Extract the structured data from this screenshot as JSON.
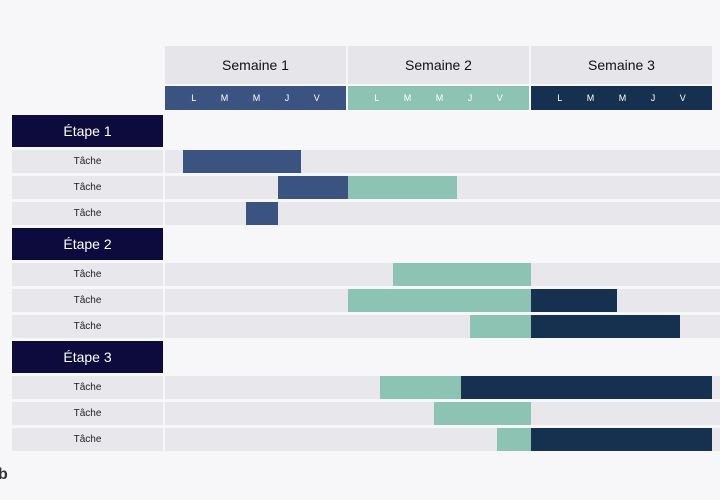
{
  "colors": {
    "week1": "#3a5381",
    "week2": "#8cc3b3",
    "week3": "#16304f"
  },
  "weeks": [
    {
      "label": "Semaine 1",
      "color": "#3a5381",
      "days": [
        "L",
        "M",
        "M",
        "J",
        "V"
      ]
    },
    {
      "label": "Semaine 2",
      "color": "#8cc3b3",
      "days": [
        "L",
        "M",
        "M",
        "J",
        "V"
      ]
    },
    {
      "label": "Semaine 3",
      "color": "#16304f",
      "days": [
        "L",
        "M",
        "M",
        "J",
        "V"
      ]
    }
  ],
  "phases": [
    {
      "label": "Étape 1",
      "tasks": [
        {
          "label": "Tâche",
          "segments": [
            {
              "start": 0.4,
              "end": 3.0,
              "week": 1
            }
          ]
        },
        {
          "label": "Tâche",
          "segments": [
            {
              "start": 2.5,
              "end": 4.0,
              "week": 1
            },
            {
              "start": 4.0,
              "end": 6.4,
              "week": 2
            }
          ]
        },
        {
          "label": "Tâche",
          "segments": [
            {
              "start": 1.8,
              "end": 2.5,
              "week": 1
            }
          ]
        }
      ]
    },
    {
      "label": "Étape 2",
      "tasks": [
        {
          "label": "Tâche",
          "segments": [
            {
              "start": 5.0,
              "end": 8.0,
              "week": 2
            }
          ]
        },
        {
          "label": "Tâche",
          "segments": [
            {
              "start": 4.0,
              "end": 8.0,
              "week": 2
            },
            {
              "start": 8.0,
              "end": 9.9,
              "week": 3
            }
          ]
        },
        {
          "label": "Tâche",
          "segments": [
            {
              "start": 6.7,
              "end": 8.0,
              "week": 2
            },
            {
              "start": 8.0,
              "end": 11.3,
              "week": 3
            }
          ]
        }
      ]
    },
    {
      "label": "Étape 3",
      "tasks": [
        {
          "label": "Tâche",
          "segments": [
            {
              "start": 4.7,
              "end": 6.5,
              "week": 2
            },
            {
              "start": 6.5,
              "end": 12.0,
              "week": 3
            }
          ]
        },
        {
          "label": "Tâche",
          "segments": [
            {
              "start": 5.9,
              "end": 8.0,
              "week": 2
            }
          ]
        },
        {
          "label": "Tâche",
          "segments": [
            {
              "start": 7.3,
              "end": 8.0,
              "week": 2
            },
            {
              "start": 8.0,
              "end": 12.0,
              "week": 3
            }
          ]
        }
      ]
    }
  ],
  "corner_glyph": "b"
}
